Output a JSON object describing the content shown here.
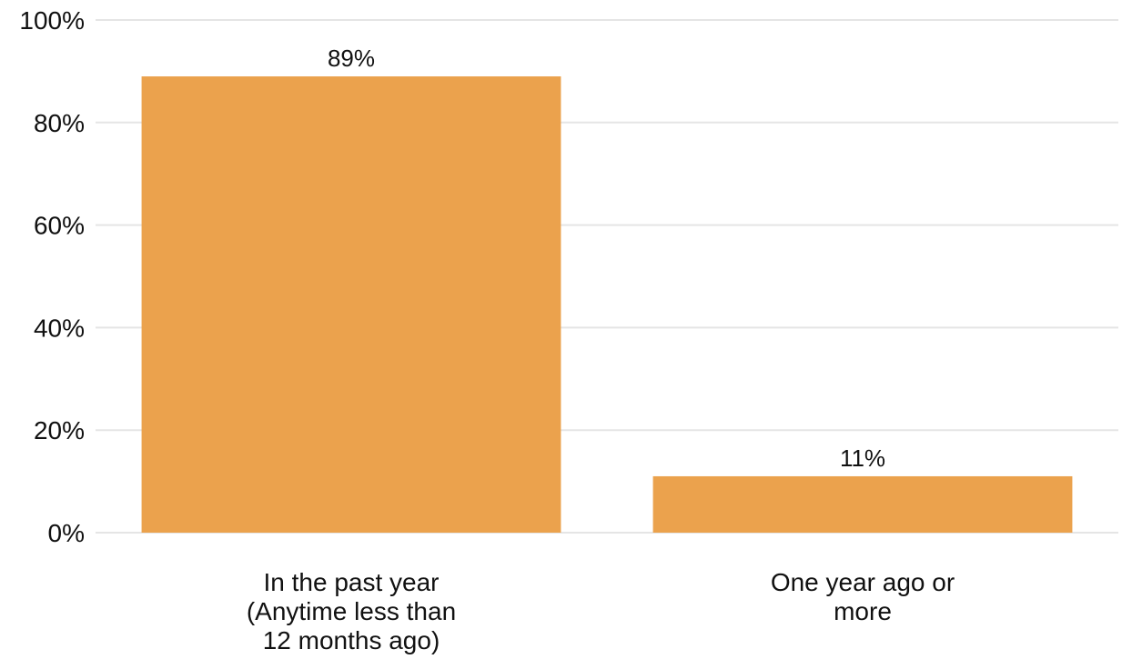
{
  "chart_data": {
    "type": "bar",
    "title": "",
    "xlabel": "",
    "ylabel": "",
    "categories": [
      "In the past year (Anytime less than 12 months ago)",
      "One year ago or more"
    ],
    "category_lines": [
      [
        "In the past year",
        "(Anytime less than",
        "12 months ago)"
      ],
      [
        "One year ago or",
        "more"
      ]
    ],
    "values": [
      89,
      11
    ],
    "value_labels": [
      "89%",
      "11%"
    ],
    "ylim": [
      0,
      100
    ],
    "yticks": [
      0,
      20,
      40,
      60,
      80,
      100
    ],
    "ytick_labels": [
      "0%",
      "20%",
      "40%",
      "60%",
      "80%",
      "100%"
    ],
    "bar_color": "#eba24d",
    "grid": true,
    "legend": "none"
  }
}
